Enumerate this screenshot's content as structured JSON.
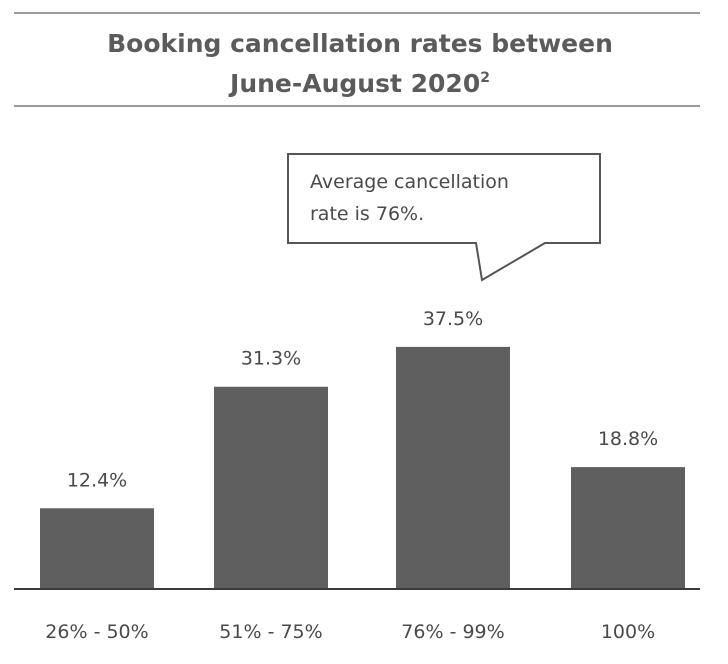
{
  "chart_data": {
    "type": "bar",
    "title": "Booking cancellation rates between",
    "title_line2": "June-August 2020",
    "title_superscript": "2",
    "categories": [
      "26% - 50%",
      "51% - 75%",
      "76% - 99%",
      "100%"
    ],
    "values": [
      12.4,
      31.3,
      37.5,
      18.8
    ],
    "value_labels": [
      "12.4%",
      "31.3%",
      "37.5%",
      "18.8%"
    ],
    "ylim": [
      0,
      42
    ],
    "grid": false,
    "annotation": {
      "lines": [
        "Average cancellation",
        "rate is 76%."
      ],
      "target_category": "76% - 99%"
    },
    "colors": {
      "bar": "#5f5f5f",
      "rule": "#9a9a9a",
      "axis": "#3a3a3a"
    }
  }
}
